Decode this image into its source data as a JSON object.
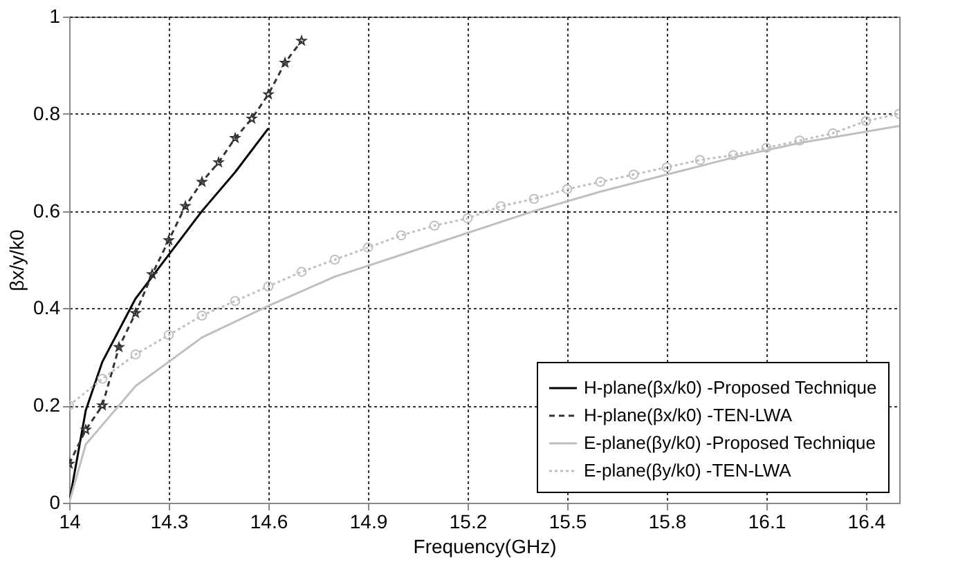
{
  "chart_data": {
    "type": "line",
    "xlabel": "Frequency(GHz)",
    "ylabel": "βx/y/k0",
    "xlim": [
      14,
      16.5
    ],
    "xticks": [
      14,
      14.3,
      14.6,
      14.9,
      15.2,
      15.5,
      15.8,
      16.1,
      16.4
    ],
    "ylim": [
      0,
      1
    ],
    "yticks": [
      0,
      0.2,
      0.4,
      0.6,
      0.8,
      1
    ],
    "grid": true,
    "legend": "bottom right",
    "series": [
      {
        "name": "H-plane(βx/k0) -Proposed Technique",
        "color": "#000000",
        "line_style": "solid",
        "marker": "none",
        "x": [
          14,
          14.05,
          14.1,
          14.2,
          14.3,
          14.4,
          14.5,
          14.6
        ],
        "values": [
          0,
          0.19,
          0.29,
          0.42,
          0.51,
          0.6,
          0.68,
          0.77
        ]
      },
      {
        "name": "H-plane(βx/k0) -TEN-LWA",
        "color": "#333333",
        "line_style": "dashed",
        "marker": "star",
        "x": [
          14,
          14.05,
          14.1,
          14.15,
          14.2,
          14.25,
          14.3,
          14.35,
          14.4,
          14.45,
          14.5,
          14.55,
          14.6,
          14.65,
          14.7
        ],
        "values": [
          0.08,
          0.15,
          0.2,
          0.32,
          0.39,
          0.47,
          0.54,
          0.61,
          0.66,
          0.7,
          0.75,
          0.79,
          0.84,
          0.905,
          0.95
        ]
      },
      {
        "name": "E-plane(βy/k0) -Proposed Technique",
        "color": "#bfbfbf",
        "line_style": "solid",
        "marker": "none",
        "x": [
          14,
          14.05,
          14.1,
          14.2,
          14.3,
          14.4,
          14.6,
          14.8,
          15,
          15.2,
          15.4,
          15.6,
          15.8,
          16,
          16.2,
          16.5
        ],
        "values": [
          0,
          0.12,
          0.16,
          0.24,
          0.29,
          0.34,
          0.405,
          0.465,
          0.51,
          0.555,
          0.6,
          0.64,
          0.675,
          0.71,
          0.74,
          0.775
        ]
      },
      {
        "name": "E-plane(βy/k0) -TEN-LWA",
        "color": "#c0c0c0",
        "line_style": "dotted",
        "marker": "circle",
        "x": [
          14,
          14.1,
          14.2,
          14.3,
          14.4,
          14.5,
          14.6,
          14.7,
          14.8,
          14.9,
          15,
          15.1,
          15.2,
          15.3,
          15.4,
          15.5,
          15.6,
          15.7,
          15.8,
          15.9,
          16,
          16.1,
          16.2,
          16.3,
          16.4,
          16.5
        ],
        "values": [
          0.2,
          0.255,
          0.305,
          0.345,
          0.385,
          0.415,
          0.445,
          0.475,
          0.5,
          0.525,
          0.55,
          0.57,
          0.585,
          0.61,
          0.625,
          0.645,
          0.66,
          0.675,
          0.69,
          0.705,
          0.715,
          0.73,
          0.745,
          0.76,
          0.785,
          0.8
        ]
      }
    ]
  }
}
